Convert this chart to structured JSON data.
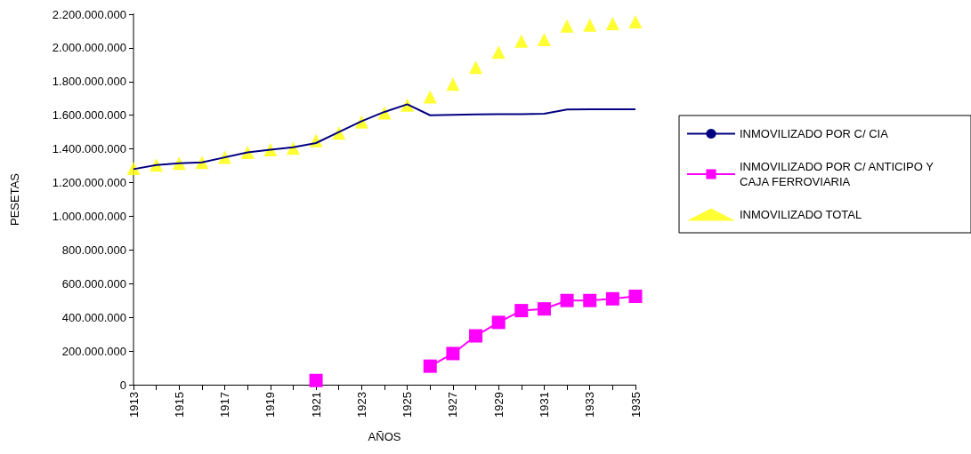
{
  "chart_data": {
    "type": "line",
    "xlabel": "AÑOS",
    "ylabel": "PESETAS",
    "categories": [
      "1913",
      null,
      "1915",
      null,
      "1917",
      null,
      "1919",
      null,
      "1921",
      null,
      "1923",
      null,
      "1925",
      null,
      "1927",
      null,
      "1929",
      null,
      "1931",
      null,
      "1933",
      null,
      "1935"
    ],
    "series": [
      {
        "name": "INMOVILIZADO POR C/ CIA",
        "color": "#000080",
        "marker": "none",
        "values": [
          1280000000,
          1305000000,
          1315000000,
          1320000000,
          1350000000,
          1380000000,
          1395000000,
          1410000000,
          1435000000,
          1500000000,
          1565000000,
          1620000000,
          1665000000,
          1600000000,
          1603000000,
          1605000000,
          1606000000,
          1607000000,
          1609000000,
          1634000000,
          1635000000,
          1635000000,
          1635000000
        ]
      },
      {
        "name": "INMOVILIZADO POR C/ ANTICIPO Y CAJA FERROVIARIA",
        "color": "#ff00ff",
        "marker": "square",
        "values": [
          null,
          null,
          null,
          null,
          null,
          null,
          null,
          null,
          25000000,
          null,
          null,
          null,
          null,
          110000000,
          185000000,
          290000000,
          370000000,
          440000000,
          450000000,
          500000000,
          500000000,
          510000000,
          525000000
        ]
      },
      {
        "name": "INMOVILIZADO TOTAL",
        "type": "scatter",
        "color": "#ffff00",
        "marker": "triangle",
        "values": [
          1285000000,
          1305000000,
          1315000000,
          1320000000,
          1350000000,
          1380000000,
          1395000000,
          1405000000,
          1450000000,
          1495000000,
          1560000000,
          1615000000,
          1660000000,
          1710000000,
          1785000000,
          1885000000,
          1975000000,
          2040000000,
          2050000000,
          2130000000,
          2135000000,
          2145000000,
          2155000000
        ]
      }
    ],
    "ylim": [
      0,
      2200000000
    ],
    "yticks": [
      0,
      {
        "value": 200000000,
        "label": "200.000.000"
      },
      {
        "value": 400000000,
        "label": "400.000.000"
      },
      {
        "value": 600000000,
        "label": "600.000.000"
      },
      {
        "value": 800000000,
        "label": "800.000.000"
      },
      {
        "value": 1000000000,
        "label": "1.000.000.000"
      },
      {
        "value": 1200000000,
        "label": "1.200.000.000"
      },
      {
        "value": 1400000000,
        "label": "1.400.000.000"
      },
      {
        "value": 1600000000,
        "label": "1.600.000.000"
      },
      {
        "value": 1800000000,
        "label": "1.800.000.000"
      },
      {
        "value": 2000000000,
        "label": "2.000.000.000"
      },
      {
        "value": 2200000000,
        "label": "2.200.000.000"
      }
    ],
    "grid": false,
    "legend": "right"
  }
}
